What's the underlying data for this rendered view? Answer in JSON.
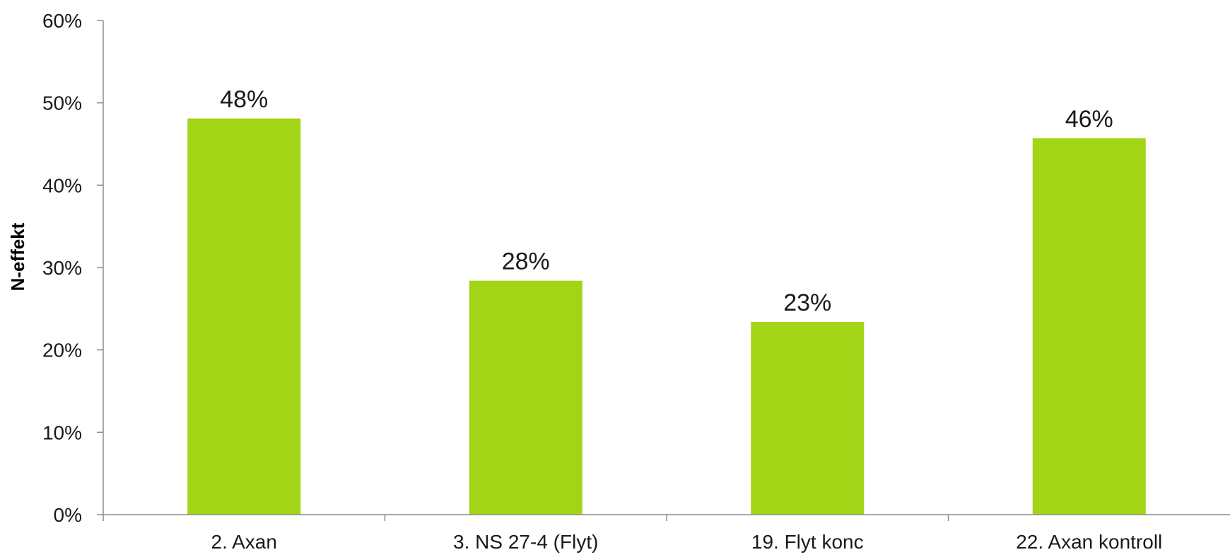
{
  "chart_data": {
    "type": "bar",
    "categories": [
      "2. Axan",
      "3. NS 27-4 (Flyt)",
      "19. Flyt konc",
      "22. Axan kontroll"
    ],
    "values": [
      48.1,
      28.4,
      23.4,
      45.7
    ],
    "data_labels": [
      "48%",
      "28%",
      "23%",
      "46%"
    ],
    "title": "",
    "xlabel": "",
    "ylabel": "N-effekt",
    "ylim": [
      0,
      60
    ],
    "yticks": [
      0,
      10,
      20,
      30,
      40,
      50,
      60
    ],
    "ytick_labels": [
      "0%",
      "10%",
      "20%",
      "30%",
      "40%",
      "50%",
      "60%"
    ],
    "grid": false,
    "legend": "none",
    "bar_color": "#a2d516"
  }
}
